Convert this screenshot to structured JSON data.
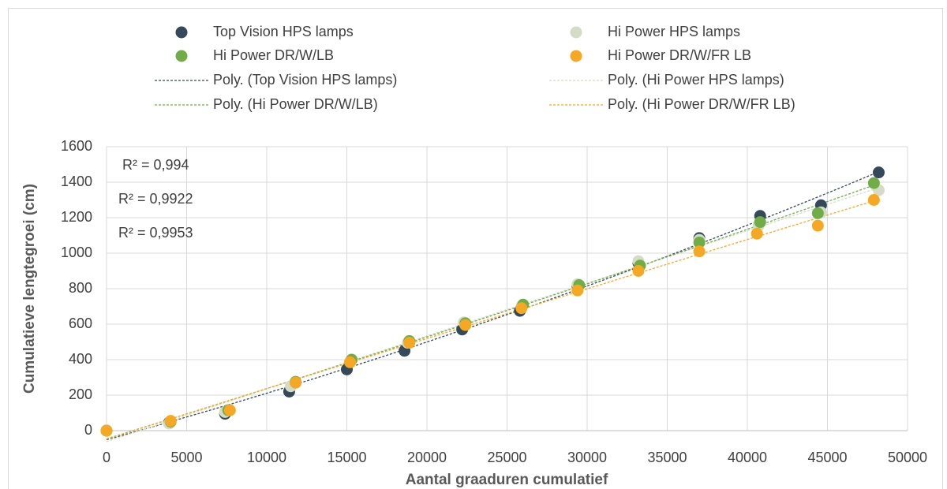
{
  "chart_data": {
    "type": "scatter",
    "xlabel": "Aantal graaduren cumulatief",
    "ylabel": "Cumulatieve lengtegroei (cm)",
    "annotations": [
      "R² = 0,994",
      "R² = 0,9922",
      "R² = 0,9953"
    ],
    "xlim": [
      0,
      50000
    ],
    "xticks": [
      0,
      5000,
      10000,
      15000,
      20000,
      25000,
      30000,
      35000,
      40000,
      45000,
      50000
    ],
    "ylim": [
      0,
      1600
    ],
    "yticks": [
      0,
      200,
      400,
      600,
      800,
      1000,
      1200,
      1400,
      1600
    ],
    "grid": true,
    "legend": "top",
    "series": [
      {
        "name": "Top Vision HPS lamps",
        "trendline": "Poly. (Top Vision HPS lamps)",
        "color": "#34495a",
        "x": [
          0,
          3900,
          7400,
          11400,
          15000,
          18600,
          22200,
          25800,
          29400,
          33200,
          37000,
          40800,
          44600,
          48200
        ],
        "values": [
          0,
          45,
          95,
          220,
          345,
          450,
          570,
          675,
          815,
          945,
          1085,
          1210,
          1270,
          1455
        ]
      },
      {
        "name": "Hi Power HPS lamps",
        "trendline": "Poly. (Hi Power HPS lamps)",
        "color": "#d5dcc6",
        "x": [
          0,
          3900,
          7400,
          11500,
          15200,
          18800,
          22300,
          25900,
          29400,
          33200,
          37000,
          40700,
          44600,
          48200
        ],
        "values": [
          0,
          40,
          105,
          250,
          390,
          495,
          610,
          700,
          825,
          955,
          1075,
          1155,
          1230,
          1355
        ]
      },
      {
        "name": "Hi Power DR/W/LB",
        "trendline": "Poly. (Hi Power DR/W/LB)",
        "color": "#70ad47",
        "x": [
          0,
          4000,
          7600,
          11800,
          15300,
          18900,
          22400,
          26000,
          29500,
          33300,
          37000,
          40800,
          44400,
          47900
        ],
        "values": [
          0,
          50,
          115,
          275,
          400,
          505,
          605,
          710,
          820,
          930,
          1060,
          1175,
          1225,
          1395
        ]
      },
      {
        "name": "Hi Power DR/W/FR LB",
        "trendline": "Poly. (Hi Power DR/W/FR LB)",
        "color": "#f7a823",
        "x": [
          0,
          4000,
          7700,
          11800,
          15200,
          18900,
          22400,
          25900,
          29400,
          33200,
          37000,
          40600,
          44400,
          47900
        ],
        "values": [
          0,
          55,
          115,
          270,
          385,
          495,
          595,
          690,
          790,
          900,
          1010,
          1110,
          1155,
          1300
        ]
      }
    ]
  }
}
